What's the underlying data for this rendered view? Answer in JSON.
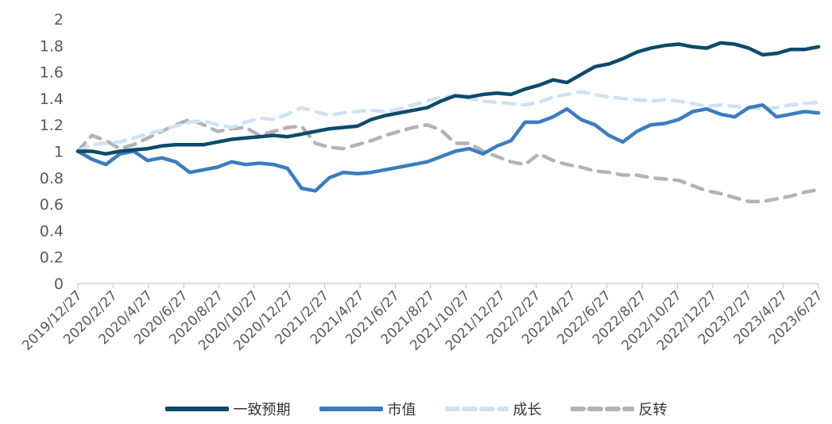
{
  "chart_data": {
    "type": "line",
    "x_ticks": [
      "2019/12/27",
      "2020/2/27",
      "2020/4/27",
      "2020/6/27",
      "2020/8/27",
      "2020/10/27",
      "2020/12/27",
      "2021/2/27",
      "2021/4/27",
      "2021/6/27",
      "2021/8/27",
      "2021/10/27",
      "2021/12/27",
      "2022/2/27",
      "2022/4/27",
      "2022/6/27",
      "2022/8/27",
      "2022/10/27",
      "2022/12/27",
      "2023/2/27",
      "2023/4/27",
      "2023/6/27"
    ],
    "y_ticks": [
      "0",
      "0.2",
      "0.4",
      "0.6",
      "0.8",
      "1",
      "1.2",
      "1.4",
      "1.6",
      "1.8",
      "2"
    ],
    "ylim": [
      0,
      2
    ],
    "legend_position": "bottom",
    "series": [
      {
        "name": "一致预期",
        "color": "#0d4a6b",
        "dash": "solid",
        "values": [
          1.0,
          1.0,
          0.98,
          1.0,
          1.01,
          1.02,
          1.04,
          1.05,
          1.05,
          1.05,
          1.07,
          1.09,
          1.1,
          1.11,
          1.12,
          1.11,
          1.13,
          1.15,
          1.17,
          1.18,
          1.19,
          1.24,
          1.27,
          1.29,
          1.31,
          1.33,
          1.38,
          1.42,
          1.41,
          1.43,
          1.44,
          1.43,
          1.47,
          1.5,
          1.54,
          1.52,
          1.58,
          1.64,
          1.66,
          1.7,
          1.75,
          1.78,
          1.8,
          1.81,
          1.79,
          1.78,
          1.82,
          1.81,
          1.78,
          1.73,
          1.74,
          1.77,
          1.77,
          1.79
        ]
      },
      {
        "name": "市值",
        "color": "#3a7cc0",
        "dash": "solid",
        "values": [
          1.0,
          0.94,
          0.9,
          0.98,
          1.0,
          0.93,
          0.95,
          0.92,
          0.84,
          0.86,
          0.88,
          0.92,
          0.9,
          0.91,
          0.9,
          0.87,
          0.72,
          0.7,
          0.8,
          0.84,
          0.83,
          0.84,
          0.86,
          0.88,
          0.9,
          0.92,
          0.96,
          1.0,
          1.02,
          0.98,
          1.04,
          1.08,
          1.22,
          1.22,
          1.26,
          1.32,
          1.24,
          1.2,
          1.12,
          1.07,
          1.15,
          1.2,
          1.21,
          1.24,
          1.3,
          1.32,
          1.28,
          1.26,
          1.33,
          1.35,
          1.26,
          1.28,
          1.3,
          1.29
        ]
      },
      {
        "name": "成长",
        "color": "#cfe2f3",
        "dash": "dashed",
        "values": [
          1.0,
          1.05,
          1.06,
          1.07,
          1.1,
          1.13,
          1.16,
          1.19,
          1.22,
          1.23,
          1.2,
          1.18,
          1.22,
          1.25,
          1.24,
          1.28,
          1.33,
          1.3,
          1.27,
          1.29,
          1.3,
          1.31,
          1.3,
          1.32,
          1.35,
          1.38,
          1.41,
          1.42,
          1.4,
          1.38,
          1.37,
          1.36,
          1.35,
          1.37,
          1.41,
          1.43,
          1.45,
          1.43,
          1.41,
          1.4,
          1.39,
          1.38,
          1.39,
          1.38,
          1.36,
          1.34,
          1.35,
          1.34,
          1.33,
          1.32,
          1.33,
          1.35,
          1.36,
          1.37
        ]
      },
      {
        "name": "反转",
        "color": "#b3b3b3",
        "dash": "dashed",
        "values": [
          1.0,
          1.12,
          1.08,
          1.02,
          1.05,
          1.1,
          1.15,
          1.2,
          1.24,
          1.2,
          1.15,
          1.17,
          1.18,
          1.12,
          1.15,
          1.18,
          1.19,
          1.06,
          1.03,
          1.02,
          1.05,
          1.08,
          1.12,
          1.15,
          1.18,
          1.2,
          1.16,
          1.06,
          1.06,
          1.0,
          0.96,
          0.92,
          0.9,
          0.98,
          0.93,
          0.9,
          0.88,
          0.85,
          0.84,
          0.82,
          0.82,
          0.8,
          0.79,
          0.78,
          0.74,
          0.7,
          0.68,
          0.65,
          0.62,
          0.62,
          0.64,
          0.66,
          0.69,
          0.71
        ]
      }
    ]
  }
}
